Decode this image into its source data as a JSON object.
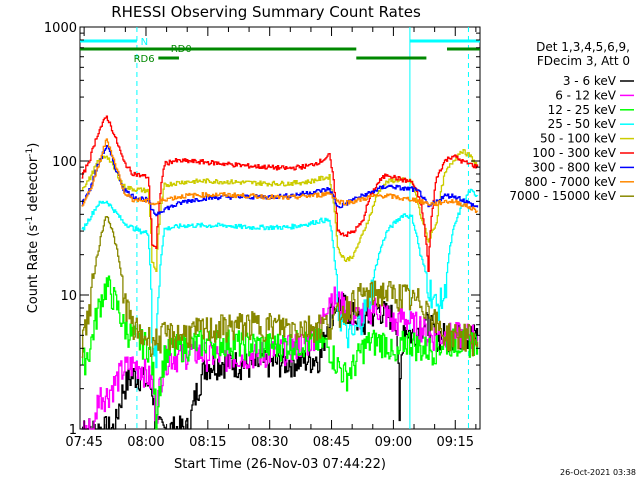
{
  "chart_data": {
    "type": "line",
    "title": "RHESSI Observing Summary Count Rates",
    "xlabel": "Start Time (26-Nov-03 07:44:22)",
    "ylabel_main": "Count Rate (s",
    "ylabel_sup1": "-1",
    "ylabel_mid": " detector",
    "ylabel_sup2": "-1",
    "ylabel_end": ")",
    "y_scale": "log",
    "ylim": [
      1,
      1000
    ],
    "xlim_minutes_after_0744": [
      -0.4,
      96.6
    ],
    "x_tick_labels": [
      "07:45",
      "08:00",
      "08:15",
      "08:30",
      "08:45",
      "09:00",
      "09:15"
    ],
    "x_tick_minutes": [
      0.6,
      15.6,
      30.6,
      45.6,
      60.6,
      75.6,
      90.6
    ],
    "y_tick_labels": [
      "1",
      "10",
      "100",
      "1000"
    ],
    "y_tick_values": [
      1,
      10,
      100,
      1000
    ],
    "legend_header": [
      "Det 1,3,4,5,6,9,",
      "FDecim 3, Att 0"
    ],
    "legend_placement": "right",
    "timestamp": "26-Oct-2021 03:38",
    "bars": {
      "night_label": "N",
      "rd0_label": "RD0",
      "rd6_label": "RD6"
    },
    "series": [
      {
        "name": "3 - 6 keV",
        "color": "#000000",
        "x": [
          0,
          5,
          8,
          10,
          12,
          14,
          17,
          18,
          20,
          22,
          26,
          30,
          35,
          40,
          45,
          50,
          55,
          58,
          60,
          62,
          64,
          66,
          68,
          70,
          72,
          74,
          76,
          77,
          78,
          80,
          82,
          84,
          86,
          88,
          90,
          92,
          94,
          96
        ],
        "y": [
          1,
          1,
          1,
          2,
          2.5,
          2.5,
          2,
          1,
          1,
          1,
          1,
          3,
          3.2,
          3,
          3.1,
          3.2,
          3.3,
          3.5,
          7,
          9,
          8,
          7,
          6,
          7,
          8,
          7,
          7,
          1,
          6,
          5,
          6,
          6,
          5,
          5,
          5,
          5,
          5,
          5
        ]
      },
      {
        "name": "6 - 12 keV",
        "color": "#ff00ff",
        "x": [
          0,
          3,
          4,
          6,
          8,
          10,
          12,
          14,
          17,
          18,
          20,
          22,
          24,
          26,
          30,
          35,
          40,
          45,
          50,
          55,
          58,
          60,
          62,
          64,
          66,
          68,
          70,
          72,
          74,
          76,
          78,
          80,
          82,
          84,
          86,
          88,
          90,
          92,
          94,
          96
        ],
        "y": [
          1,
          1,
          1.8,
          1.8,
          2.2,
          2.8,
          3,
          3,
          2.2,
          1.2,
          3.3,
          3.5,
          3.5,
          3.8,
          3.6,
          3.5,
          3.6,
          3.7,
          4,
          4.5,
          6,
          10,
          9,
          8,
          7,
          7,
          8,
          8,
          7,
          6,
          7,
          6,
          6,
          5,
          5,
          5,
          5,
          5,
          5,
          5
        ]
      },
      {
        "name": "12 - 25 keV",
        "color": "#00ff00",
        "x": [
          0,
          2,
          4,
          6,
          8,
          10,
          12,
          14,
          16,
          17,
          18,
          20,
          22,
          25,
          30,
          35,
          40,
          45,
          50,
          55,
          58,
          60,
          62,
          64,
          66,
          68,
          70,
          72,
          74,
          76,
          78,
          80,
          82,
          84,
          86,
          88,
          90,
          92,
          94,
          96
        ],
        "y": [
          3,
          4,
          8,
          12,
          9,
          6,
          5,
          4.5,
          4.2,
          3,
          1.2,
          3.5,
          4,
          4.2,
          4.5,
          4.5,
          4.3,
          4.2,
          4.3,
          4.5,
          4.5,
          4,
          3,
          2.5,
          3,
          4,
          4.5,
          4.5,
          4.5,
          3,
          4.5,
          4.5,
          4,
          4,
          4,
          4.5,
          4.5,
          4.5,
          4.5,
          4.5
        ]
      },
      {
        "name": "25 - 50 keV",
        "color": "#00ffff",
        "x": [
          0,
          2,
          4,
          6,
          8,
          10,
          12,
          14,
          16,
          17,
          18,
          20,
          22,
          25,
          30,
          35,
          40,
          45,
          50,
          55,
          58,
          60,
          62,
          64,
          66,
          68,
          70,
          72,
          74,
          76,
          78,
          80,
          82,
          84,
          86,
          88,
          90,
          92,
          94,
          96
        ],
        "y": [
          30,
          38,
          48,
          50,
          42,
          35,
          32,
          30,
          29,
          5,
          3,
          31,
          32,
          33,
          33,
          33,
          32,
          32,
          32,
          34,
          36,
          36,
          8,
          5,
          5,
          7,
          10,
          20,
          30,
          35,
          40,
          38,
          20,
          12,
          8,
          10,
          30,
          45,
          60,
          55
        ]
      },
      {
        "name": "50 - 100 keV",
        "color": "#cccc00",
        "x": [
          0,
          2,
          4,
          6,
          8,
          10,
          12,
          14,
          16,
          17,
          18,
          20,
          22,
          25,
          30,
          35,
          40,
          45,
          50,
          55,
          58,
          60,
          62,
          64,
          66,
          68,
          70,
          72,
          74,
          76,
          78,
          80,
          82,
          84,
          86,
          88,
          90,
          92,
          94,
          96
        ],
        "y": [
          62,
          75,
          100,
          110,
          85,
          65,
          62,
          61,
          60,
          18,
          15,
          66,
          68,
          70,
          71,
          70,
          69,
          68,
          68,
          70,
          74,
          76,
          22,
          18,
          20,
          28,
          40,
          60,
          70,
          72,
          72,
          70,
          40,
          25,
          35,
          80,
          100,
          120,
          110,
          90
        ]
      },
      {
        "name": "100 - 300 keV",
        "color": "#ff0000",
        "x": [
          0,
          2,
          4,
          6,
          8,
          10,
          12,
          14,
          16,
          17,
          18,
          20,
          22,
          25,
          30,
          35,
          40,
          45,
          50,
          55,
          58,
          60,
          62,
          64,
          66,
          68,
          70,
          72,
          74,
          76,
          78,
          80,
          82,
          84,
          86,
          88,
          90,
          92,
          94,
          96
        ],
        "y": [
          75,
          105,
          165,
          215,
          150,
          100,
          82,
          78,
          76,
          24,
          22,
          95,
          100,
          100,
          98,
          95,
          92,
          90,
          88,
          92,
          100,
          110,
          30,
          28,
          30,
          35,
          55,
          70,
          80,
          75,
          72,
          70,
          50,
          15,
          75,
          100,
          110,
          100,
          95,
          90
        ]
      },
      {
        "name": "300 - 800 keV",
        "color": "#0000ff",
        "x": [
          0,
          2,
          4,
          6,
          8,
          10,
          12,
          14,
          16,
          17,
          18,
          20,
          22,
          25,
          30,
          35,
          40,
          45,
          50,
          55,
          58,
          60,
          62,
          64,
          66,
          68,
          70,
          72,
          74,
          76,
          78,
          80,
          82,
          84,
          86,
          88,
          90,
          92,
          94,
          96
        ],
        "y": [
          48,
          62,
          95,
          130,
          90,
          62,
          55,
          53,
          51,
          42,
          40,
          44,
          46,
          50,
          53,
          54,
          54,
          54,
          55,
          58,
          60,
          62,
          45,
          48,
          52,
          55,
          58,
          62,
          65,
          64,
          62,
          62,
          58,
          45,
          50,
          55,
          55,
          52,
          48,
          45
        ]
      },
      {
        "name": "800 - 7000 keV",
        "color": "#ff8800",
        "x": [
          0,
          2,
          4,
          6,
          8,
          10,
          12,
          14,
          16,
          17,
          18,
          20,
          22,
          25,
          30,
          35,
          40,
          45,
          50,
          55,
          58,
          60,
          62,
          64,
          66,
          68,
          70,
          72,
          74,
          76,
          78,
          80,
          82,
          84,
          86,
          88,
          90,
          92,
          94,
          96
        ],
        "y": [
          46,
          60,
          90,
          145,
          95,
          60,
          52,
          51,
          50,
          48,
          48,
          52,
          53,
          55,
          56,
          56,
          55,
          54,
          53,
          55,
          56,
          58,
          50,
          49,
          50,
          52,
          54,
          55,
          55,
          54,
          52,
          52,
          50,
          48,
          48,
          50,
          50,
          48,
          45,
          42
        ]
      },
      {
        "name": "7000 - 15000 keV",
        "color": "#888800",
        "x": [
          0,
          2,
          4,
          6,
          8,
          10,
          12,
          14,
          16,
          17,
          18,
          20,
          22,
          25,
          30,
          35,
          40,
          45,
          50,
          55,
          58,
          60,
          62,
          64,
          66,
          68,
          70,
          72,
          74,
          76,
          78,
          80,
          82,
          84,
          86,
          88,
          90,
          92,
          94,
          96
        ],
        "y": [
          4.5,
          8,
          22,
          40,
          25,
          10,
          6,
          5,
          4.8,
          4.6,
          4.6,
          5,
          5,
          5.2,
          5.5,
          5.8,
          6,
          6,
          5.8,
          5.8,
          6,
          6,
          7,
          8,
          9,
          10,
          10,
          10.5,
          10.5,
          10,
          10,
          9,
          9,
          8,
          6,
          5,
          5,
          5,
          4.8,
          4.5
        ]
      }
    ]
  }
}
